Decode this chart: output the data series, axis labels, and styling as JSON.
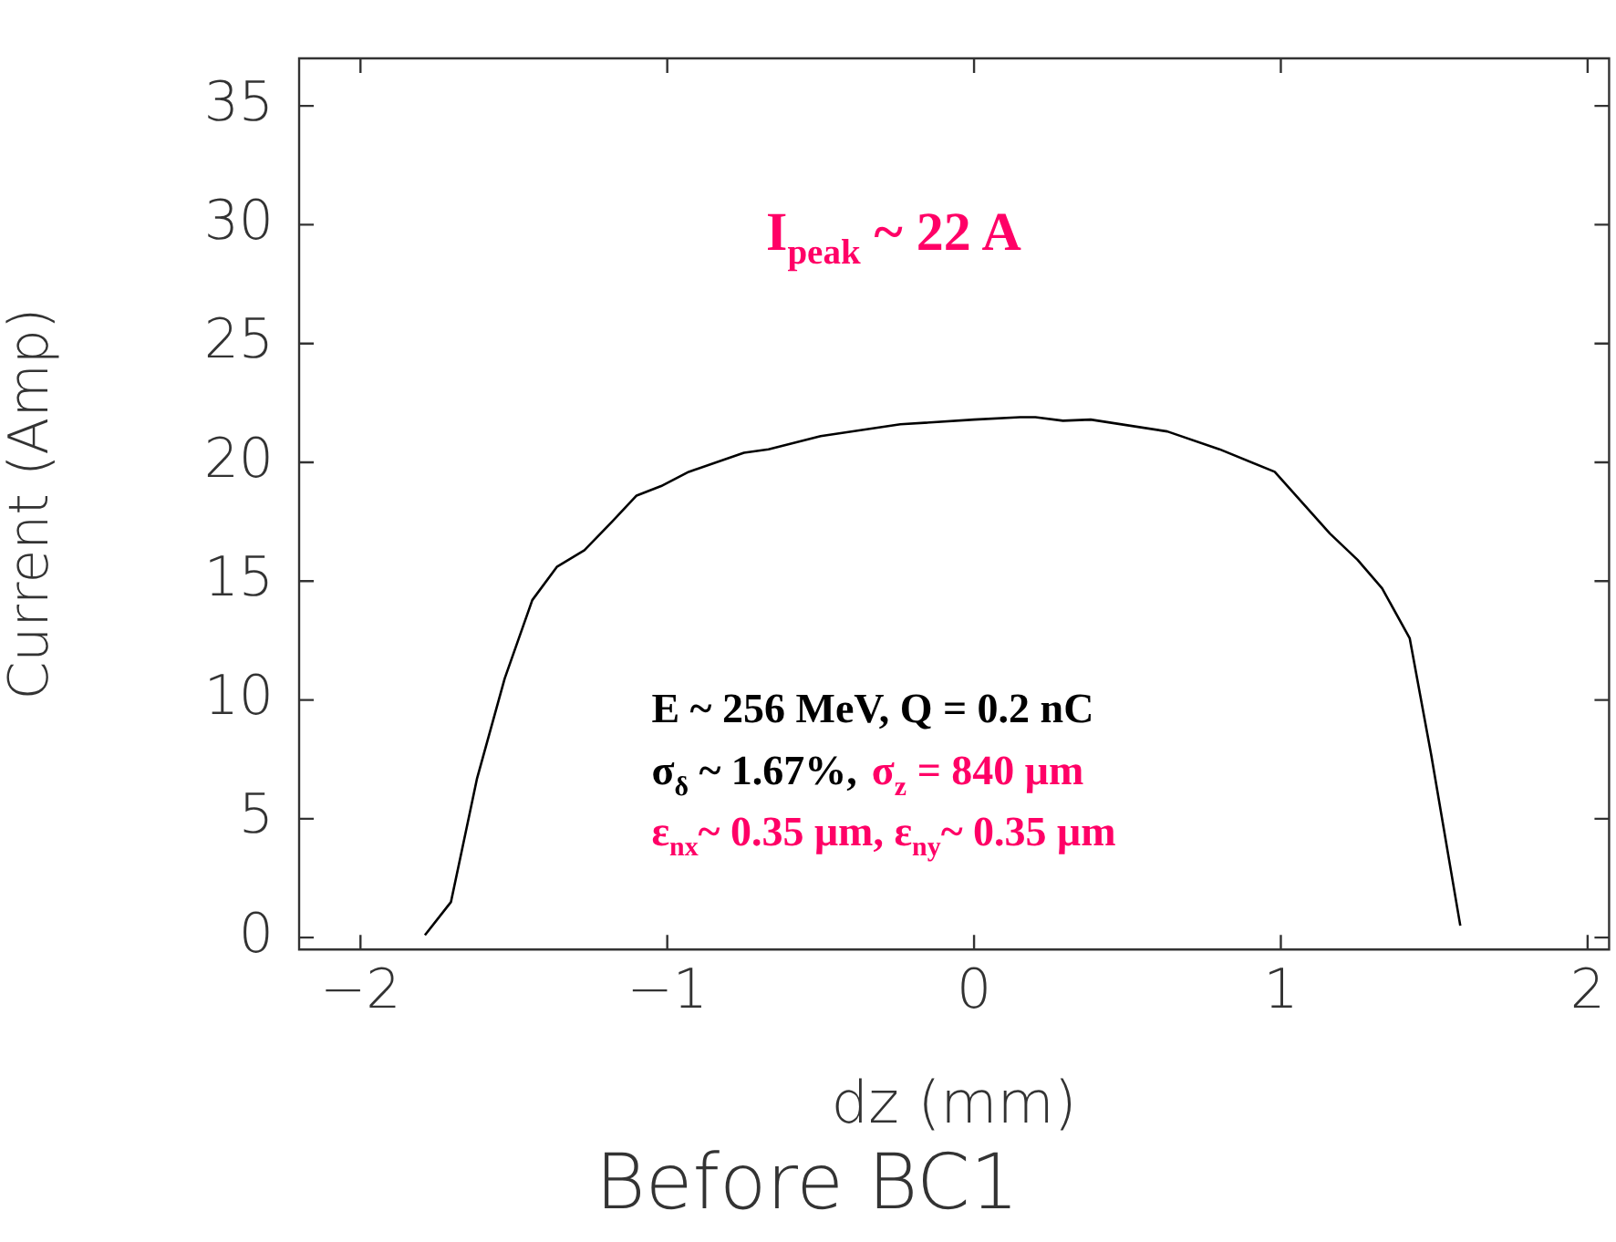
{
  "chart_data": {
    "type": "line",
    "title": "Before BC1",
    "xlabel": "dz (mm)",
    "ylabel": "Current (Amp)",
    "x": [
      -1.79,
      -1.705,
      -1.62,
      -1.53,
      -1.44,
      -1.36,
      -1.27,
      -1.18,
      -1.1,
      -1.02,
      -0.93,
      -0.75,
      -0.67,
      -0.5,
      -0.24,
      0.0,
      0.15,
      0.2,
      0.29,
      0.38,
      0.63,
      0.8,
      0.98,
      1.16,
      1.25,
      1.33,
      1.42,
      1.49,
      1.585
    ],
    "series": [
      {
        "color": "#000000",
        "values": [
          0.1,
          1.5,
          6.7,
          10.9,
          14.2,
          15.6,
          16.3,
          17.5,
          18.6,
          19.0,
          19.6,
          20.4,
          20.55,
          21.1,
          21.6,
          21.8,
          21.9,
          21.9,
          21.75,
          21.8,
          21.3,
          20.55,
          19.6,
          17.0,
          15.9,
          14.7,
          12.6,
          7.7,
          0.5
        ]
      }
    ],
    "xlim": [
      -2.2,
      2.07
    ],
    "ylim": [
      -0.5,
      37
    ],
    "xticks": [
      -2,
      -1,
      0,
      1,
      2
    ],
    "yticks": [
      0,
      5,
      10,
      15,
      20,
      25,
      30,
      35
    ],
    "grid": false,
    "legend": false,
    "marker": "none",
    "line_style": "solid",
    "annotations": [
      "I$_{peak}$ ~ 22 A",
      "E ~ 256 MeV, Q = 0.2 nC",
      "σ$_{δ}$ ~ 1.67%,",
      "σ$_{z}$ = 840 μm",
      "ε$_{nx}$~ 0.35 μm, ε$_{ny}$~ 0.35 μm"
    ]
  }
}
